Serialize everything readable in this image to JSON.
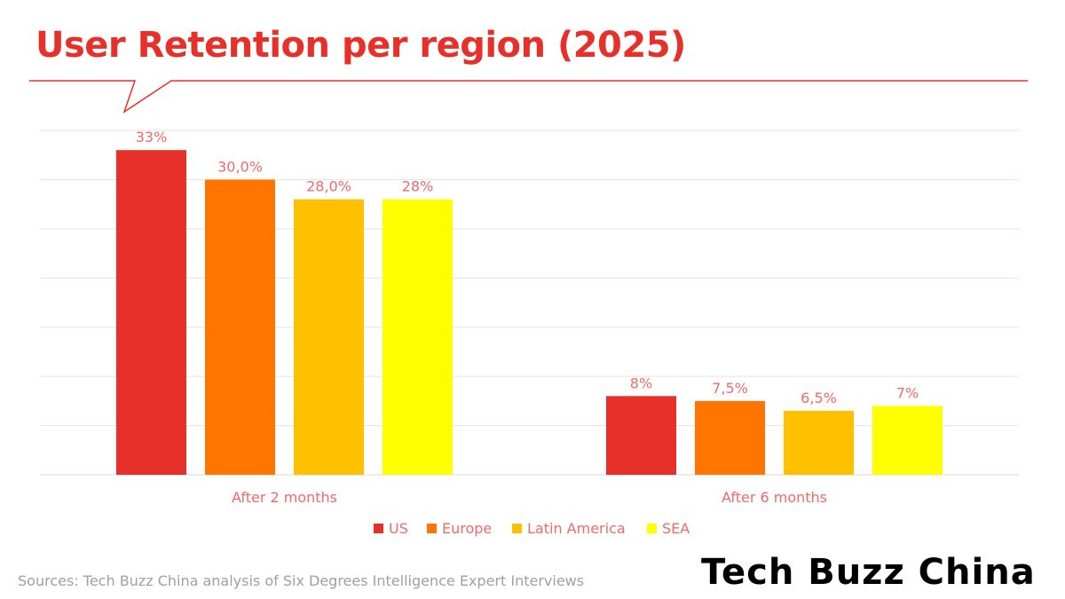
{
  "title": "User Retention per region (2025)",
  "source": "Sources: Tech Buzz China analysis of Six Degrees Intelligence Expert Interviews",
  "logo": "Tech Buzz China",
  "chart_data": {
    "type": "bar",
    "title": "User Retention per region (2025)",
    "categories": [
      "After 2 months",
      "After 6 months"
    ],
    "series": [
      {
        "name": "US",
        "color": "#e8302a",
        "values": [
          33,
          8
        ],
        "labels": [
          "33%",
          "8%"
        ]
      },
      {
        "name": "Europe",
        "color": "#ff7500",
        "values": [
          30,
          7.5
        ],
        "labels": [
          "30,0%",
          "7,5%"
        ]
      },
      {
        "name": "Latin America",
        "color": "#ffc000",
        "values": [
          28,
          6.5
        ],
        "labels": [
          "28,0%",
          "6,5%"
        ]
      },
      {
        "name": "SEA",
        "color": "#ffff00",
        "values": [
          28,
          7
        ],
        "labels": [
          "28%",
          "7%"
        ]
      }
    ],
    "ylim": [
      0,
      35
    ],
    "grid_step": 5,
    "grid": true,
    "legend": "bottom-center",
    "label_color": "#f06a6a"
  }
}
